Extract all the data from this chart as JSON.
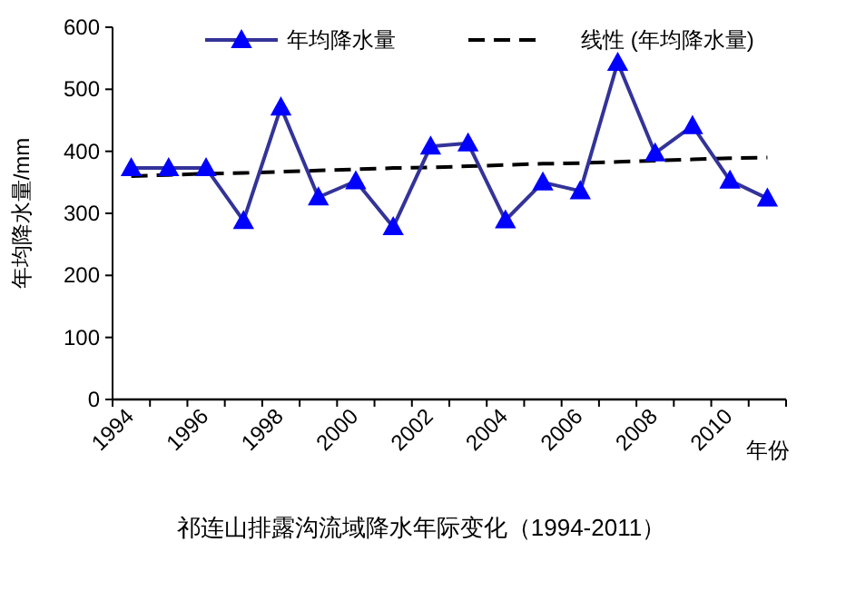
{
  "chart_data": {
    "type": "line",
    "title": "祁连山排露沟流域降水年际变化（1994-2011）",
    "xlabel": "年份",
    "ylabel": "年均降水量/mm",
    "categories": [
      "1994",
      null,
      "1996",
      null,
      "1998",
      null,
      "2000",
      null,
      "2002",
      null,
      "2004",
      null,
      "2006",
      null,
      "2008",
      null,
      "2010",
      null
    ],
    "series": [
      {
        "name": "年均降水量",
        "color": "#333399",
        "marker": "triangle",
        "line_style": "solid",
        "values": [
          373,
          373,
          373,
          288,
          471,
          326,
          352,
          278,
          408,
          413,
          289,
          350,
          336,
          543,
          397,
          441,
          353,
          324
        ]
      },
      {
        "name": "线性 (年均降水量)",
        "color": "#000000",
        "marker": "none",
        "line_style": "dashed",
        "values": [
          360,
          362,
          364,
          365,
          367,
          369,
          371,
          373,
          374,
          376,
          378,
          380,
          381,
          383,
          385,
          387,
          389,
          390
        ]
      }
    ],
    "ylim": [
      0,
      600
    ],
    "yticks": [
      0,
      100,
      200,
      300,
      400,
      500,
      600
    ],
    "grid": false,
    "legend": "top"
  }
}
